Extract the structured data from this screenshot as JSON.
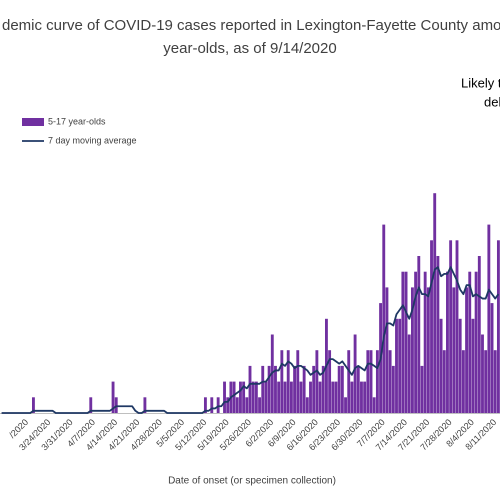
{
  "chart_data": {
    "type": "bar",
    "title": [
      "demic curve of COVID-19 cases reported in Lexington-Fayette County among",
      "year-olds, as of 9/14/2020"
    ],
    "annotations": [
      "Likely t",
      "del"
    ],
    "x_label": "Date of onset (or specimen collection)",
    "legend": "upper left",
    "categories": [
      null,
      null,
      null,
      null,
      null,
      null,
      null,
      null,
      "/2020",
      null,
      null,
      null,
      null,
      null,
      null,
      "3/24/2020",
      null,
      null,
      null,
      null,
      null,
      null,
      "3/31/2020",
      null,
      null,
      null,
      null,
      null,
      null,
      "4/7/2020",
      null,
      null,
      null,
      null,
      null,
      null,
      "4/14/2020",
      null,
      null,
      null,
      null,
      null,
      null,
      "4/21/2020",
      null,
      null,
      null,
      null,
      null,
      null,
      "4/28/2020",
      null,
      null,
      null,
      null,
      null,
      null,
      "5/5/2020",
      null,
      null,
      null,
      null,
      null,
      null,
      "5/12/2020",
      null,
      null,
      null,
      null,
      null,
      null,
      "5/19/2020",
      null,
      null,
      null,
      null,
      null,
      null,
      "5/26/2020",
      null,
      null,
      null,
      null,
      null,
      null,
      "6/2/2020",
      null,
      null,
      null,
      null,
      null,
      null,
      "6/9/2020",
      null,
      null,
      null,
      null,
      null,
      null,
      "6/16/2020",
      null,
      null,
      null,
      null,
      null,
      null,
      "6/23/2020",
      null,
      null,
      null,
      null,
      null,
      null,
      "6/30/2020",
      null,
      null,
      null,
      null,
      null,
      null,
      "7/7/2020",
      null,
      null,
      null,
      null,
      null,
      null,
      "7/14/2020",
      null,
      null,
      null,
      null,
      null,
      null,
      "7/21/2020",
      null,
      null,
      null,
      null,
      null,
      null,
      "7/28/2020",
      null,
      null,
      null,
      null,
      null,
      null,
      "8/4/2020",
      null,
      null,
      null,
      null,
      null,
      null,
      "8/11/2020",
      null
    ],
    "series": [
      {
        "name": "5-17 year-olds",
        "type": "bar",
        "color": "#7030a0",
        "values": [
          0,
          0,
          0,
          0,
          0,
          0,
          0,
          0,
          0,
          0,
          1,
          0,
          0,
          0,
          0,
          0,
          0,
          0,
          0,
          0,
          0,
          0,
          0,
          0,
          0,
          0,
          0,
          0,
          1,
          0,
          0,
          0,
          0,
          0,
          0,
          2,
          1,
          0,
          0,
          0,
          0,
          0,
          0,
          0,
          0,
          1,
          0,
          0,
          0,
          0,
          0,
          0,
          0,
          0,
          0,
          0,
          0,
          0,
          0,
          0,
          0,
          0,
          0,
          0,
          1,
          0,
          1,
          0,
          1,
          0,
          2,
          1,
          2,
          2,
          1,
          2,
          2,
          1,
          3,
          2,
          2,
          1,
          3,
          2,
          3,
          5,
          3,
          2,
          4,
          2,
          4,
          2,
          3,
          4,
          2,
          3,
          1,
          2,
          3,
          4,
          2,
          3,
          6,
          4,
          2,
          2,
          3,
          3,
          1,
          4,
          2,
          5,
          3,
          2,
          2,
          4,
          4,
          1,
          4,
          7,
          12,
          8,
          4,
          3,
          6,
          6,
          9,
          9,
          5,
          8,
          9,
          10,
          3,
          9,
          8,
          11,
          14,
          10,
          6,
          4,
          9,
          11,
          8,
          11,
          6,
          4,
          8,
          9,
          6,
          9,
          10,
          5,
          4,
          12,
          7,
          4,
          11
        ]
      },
      {
        "name": "7 day moving average",
        "type": "line",
        "color": "#1f3864",
        "values": [
          0,
          0,
          0,
          0,
          0,
          0,
          0,
          0,
          0,
          0,
          0.14,
          0.14,
          0.14,
          0.14,
          0.14,
          0.14,
          0.14,
          0,
          0,
          0,
          0,
          0,
          0,
          0,
          0,
          0,
          0,
          0,
          0.14,
          0.14,
          0.14,
          0.14,
          0.14,
          0.14,
          0.14,
          0.29,
          0.43,
          0.43,
          0.43,
          0.43,
          0.43,
          0.43,
          0.14,
          0,
          0,
          0.14,
          0.14,
          0.14,
          0.14,
          0.14,
          0.14,
          0.14,
          0,
          0,
          0,
          0,
          0,
          0,
          0,
          0,
          0,
          0,
          0,
          0,
          0.14,
          0.14,
          0.29,
          0.29,
          0.43,
          0.43,
          0.71,
          0.71,
          1,
          1.14,
          1.29,
          1.43,
          1.71,
          1.57,
          1.86,
          1.86,
          1.86,
          1.86,
          2,
          2,
          2.29,
          2.57,
          2.71,
          2.71,
          3.14,
          3,
          3.29,
          3.14,
          2.86,
          3,
          3,
          2.86,
          2.71,
          2.43,
          2.57,
          2.71,
          2.43,
          2.57,
          3,
          3.43,
          3.43,
          3.29,
          3.14,
          3.29,
          3,
          2.71,
          2.43,
          2.86,
          3,
          2.86,
          2.71,
          3.14,
          3.14,
          3,
          2.86,
          3.43,
          4.86,
          5.71,
          5.71,
          5.57,
          6.29,
          6.57,
          6.86,
          6.43,
          6,
          6.57,
          7.43,
          8,
          7.57,
          7.57,
          7.43,
          8.29,
          9.14,
          9.29,
          8.71,
          8.86,
          8.86,
          9.29,
          8.86,
          8.43,
          7.86,
          7.57,
          8.14,
          8.14,
          7.43,
          7.57,
          7.43,
          7.29,
          7.29,
          7.86,
          7.57,
          7.29,
          7.57
        ]
      }
    ]
  }
}
